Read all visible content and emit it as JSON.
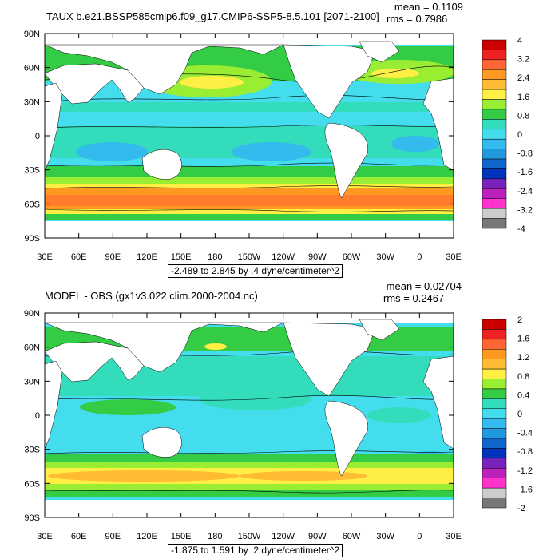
{
  "panels": [
    {
      "title": "TAUX b.e21.BSSP585cmip6.f09_g17.CMIP6-SSP5-8.5.101 [2071-2100]",
      "mean": "mean = 0.1109",
      "rms": "rms = 0.7986",
      "range": "-2.489 to 2.845 by .4 dyne/centimeter^2",
      "colorbar": {
        "labels": [
          "4",
          "3.2",
          "2.4",
          "1.6",
          "0.8",
          "0",
          "-0.8",
          "-1.6",
          "-2.4",
          "-3.2",
          "-4"
        ],
        "colors": [
          "#cc0000",
          "#ee2222",
          "#ff6633",
          "#ff9922",
          "#ffbb33",
          "#ffee44",
          "#99ee33",
          "#33cc44",
          "#33ddbb",
          "#44ddee",
          "#33bbee",
          "#2299dd",
          "#1166cc",
          "#0033bb",
          "#7722bb",
          "#bb22bb",
          "#ff33cc",
          "#cccccc",
          "#777777"
        ]
      }
    },
    {
      "title": "MODEL - OBS (gx1v3.022.clim.2000-2004.nc)",
      "mean": "mean = 0.02704",
      "rms": "rms = 0.2467",
      "range": "-1.875 to 1.591 by .2 dyne/centimeter^2",
      "colorbar": {
        "labels": [
          "2",
          "1.6",
          "1.2",
          "0.8",
          "0.4",
          "0",
          "-0.4",
          "-0.8",
          "-1.2",
          "-1.6",
          "-2"
        ],
        "colors": [
          "#cc0000",
          "#ee2222",
          "#ff6633",
          "#ff9922",
          "#ffbb33",
          "#ffee44",
          "#99ee33",
          "#33cc44",
          "#33ddbb",
          "#44ddee",
          "#33bbee",
          "#2299dd",
          "#1166cc",
          "#0033bb",
          "#7722bb",
          "#bb22bb",
          "#ff33cc",
          "#cccccc",
          "#777777"
        ]
      }
    }
  ],
  "axes": {
    "lat_labels": [
      "90N",
      "60N",
      "30N",
      "0",
      "30S",
      "60S",
      "90S"
    ],
    "lon_labels": [
      "30E",
      "60E",
      "90E",
      "120E",
      "150E",
      "180",
      "150W",
      "120W",
      "90W",
      "60W",
      "30W",
      "0",
      "30E"
    ]
  },
  "colors": {
    "land": "#ffffff",
    "ocean_base": "#44ddee",
    "tropics": "#33ddbb",
    "westerlies_1": "#ff9922",
    "westerlies_2": "#ffbb33",
    "north_jet": "#99ee33"
  }
}
